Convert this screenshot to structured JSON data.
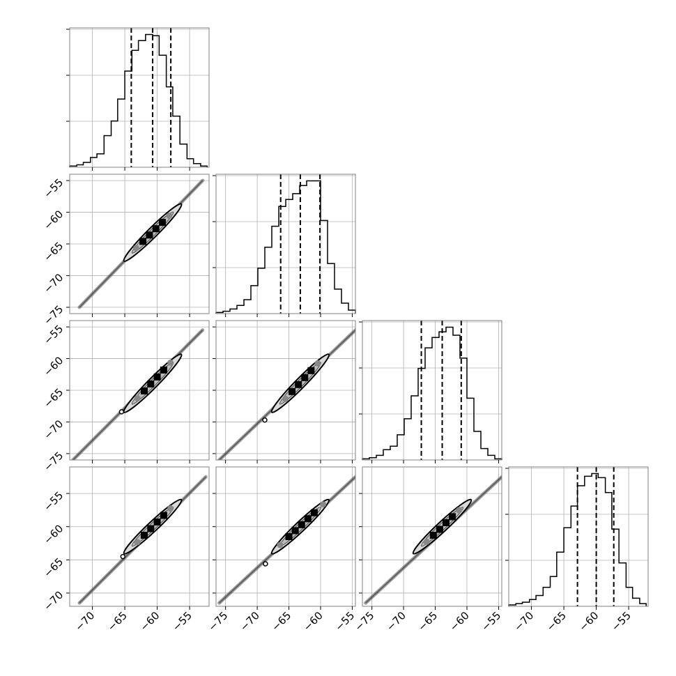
{
  "chart_data": {
    "type": "corner",
    "colors": {
      "line": "#000000",
      "grid": "#b0b0b0",
      "frame": "#808080",
      "contour_fill": "#d9d9d9",
      "scatter": "#555555"
    },
    "grid": true,
    "quantile_lines": "dashed",
    "ticks": {
      "x": [
        [
          "−70",
          "−65",
          "−60",
          "−55"
        ],
        [
          "−75",
          "−70",
          "−65",
          "−60",
          "−55"
        ],
        [
          "−75",
          "−70",
          "−65",
          "−60",
          "−55"
        ],
        [
          "−70",
          "−65",
          "−60",
          "−55"
        ]
      ],
      "y": [
        [],
        [
          "−55",
          "−60",
          "−65",
          "−70",
          "−75"
        ],
        [
          "−55",
          "−60",
          "−65",
          "−70",
          "−75"
        ],
        [
          "−55",
          "−60",
          "−65",
          "−70"
        ]
      ]
    },
    "x_ranges": [
      [
        -73.5,
        -52.0
      ],
      [
        -76.5,
        -54.5
      ],
      [
        -76.5,
        -54.5
      ],
      [
        -73.5,
        -52.0
      ]
    ],
    "y_ranges": [
      [
        null,
        null
      ],
      [
        -76.0,
        -54.0
      ],
      [
        -76.0,
        -54.0
      ],
      [
        -72.0,
        -51.0
      ]
    ],
    "histograms": [
      {
        "quantiles": [
          -64.0,
          -60.7,
          -57.9
        ],
        "edges": [
          -73.5,
          -72.4,
          -71.4,
          -70.3,
          -69.3,
          -68.2,
          -67.1,
          -66.1,
          -65.0,
          -63.9,
          -62.9,
          -61.8,
          -60.7,
          -59.7,
          -58.6,
          -57.6,
          -56.5,
          -55.4,
          -54.4,
          -53.3,
          -52.3
        ],
        "counts": [
          0.01,
          0.02,
          0.04,
          0.08,
          0.11,
          0.26,
          0.38,
          0.56,
          0.79,
          0.96,
          1.04,
          1.09,
          1.08,
          0.92,
          0.66,
          0.42,
          0.19,
          0.07,
          0.03,
          0.01
        ]
      },
      {
        "quantiles": [
          -66.3,
          -63.2,
          -60.1
        ],
        "edges": [
          -76.5,
          -75.4,
          -74.3,
          -73.2,
          -72.1,
          -71.0,
          -69.9,
          -68.8,
          -67.7,
          -66.6,
          -65.5,
          -64.4,
          -63.3,
          -62.2,
          -61.1,
          -60.0,
          -58.9,
          -57.8,
          -56.7,
          -55.6,
          -54.5
        ],
        "counts": [
          0.01,
          0.02,
          0.04,
          0.07,
          0.12,
          0.24,
          0.39,
          0.57,
          0.75,
          0.92,
          0.98,
          1.03,
          1.1,
          1.14,
          1.14,
          0.8,
          0.43,
          0.21,
          0.09,
          0.03
        ]
      },
      {
        "quantiles": [
          -67.2,
          -63.9,
          -60.9
        ],
        "edges": [
          -76.5,
          -75.4,
          -74.3,
          -73.2,
          -72.1,
          -71.0,
          -69.9,
          -68.8,
          -67.7,
          -66.6,
          -65.5,
          -64.4,
          -63.3,
          -62.2,
          -61.1,
          -60.0,
          -58.9,
          -57.8,
          -56.7,
          -55.6,
          -54.5
        ],
        "counts": [
          0.01,
          0.02,
          0.04,
          0.09,
          0.12,
          0.22,
          0.36,
          0.56,
          0.8,
          0.98,
          1.07,
          1.12,
          1.16,
          1.09,
          0.89,
          0.54,
          0.25,
          0.1,
          0.04,
          0.01
        ]
      },
      {
        "quantiles": [
          -62.9,
          -60.0,
          -57.3
        ],
        "edges": [
          -73.5,
          -72.4,
          -71.4,
          -70.3,
          -69.3,
          -68.2,
          -67.1,
          -66.1,
          -65.0,
          -63.9,
          -62.9,
          -61.8,
          -60.7,
          -59.7,
          -58.6,
          -57.6,
          -56.5,
          -55.4,
          -54.4,
          -53.3,
          -52.3
        ],
        "counts": [
          0.01,
          0.02,
          0.03,
          0.05,
          0.08,
          0.14,
          0.22,
          0.4,
          0.58,
          0.74,
          0.89,
          0.96,
          0.98,
          0.95,
          0.84,
          0.57,
          0.32,
          0.14,
          0.06,
          0.02
        ]
      }
    ],
    "contours": [
      {
        "row": 1,
        "col": 0,
        "x_span": [
          -72.0,
          -53.0
        ],
        "y_span": [
          -75.0,
          -55.0
        ],
        "ellipse": [
          [
            -60.7,
            -63.2
          ],
          [
            -57.9,
            -60.1
          ],
          [
            -64.0,
            -66.3
          ]
        ],
        "points": [
          [
            -62.2,
            -64.6
          ],
          [
            -61.2,
            -63.6
          ],
          [
            -60.2,
            -62.6
          ],
          [
            -59.2,
            -61.6
          ]
        ],
        "open_point": null
      },
      {
        "row": 2,
        "col": 0,
        "x_span": [
          -73.0,
          -53.0
        ],
        "y_span": [
          -76.0,
          -55.5
        ],
        "ellipse": [
          [
            -60.7,
            -63.9
          ],
          [
            -57.9,
            -60.9
          ],
          [
            -64.0,
            -67.2
          ]
        ],
        "points": [
          [
            -62.0,
            -65.1
          ],
          [
            -61.0,
            -64.0
          ],
          [
            -60.0,
            -62.9
          ],
          [
            -59.0,
            -61.8
          ]
        ],
        "open_point": [
          -65.5,
          -68.4
        ]
      },
      {
        "row": 2,
        "col": 1,
        "x_span": [
          -76.0,
          -54.5
        ],
        "y_span": [
          -76.0,
          -55.5
        ],
        "ellipse": [
          [
            -63.2,
            -63.9
          ],
          [
            -60.1,
            -60.9
          ],
          [
            -66.3,
            -67.2
          ]
        ],
        "points": [
          [
            -64.5,
            -65.2
          ],
          [
            -63.5,
            -64.1
          ],
          [
            -62.5,
            -63.0
          ],
          [
            -61.5,
            -61.9
          ]
        ],
        "open_point": [
          -68.8,
          -69.7
        ]
      },
      {
        "row": 3,
        "col": 0,
        "x_span": [
          -72.0,
          -52.5
        ],
        "y_span": [
          -71.5,
          -52.5
        ],
        "ellipse": [
          [
            -60.7,
            -60.0
          ],
          [
            -57.9,
            -57.3
          ],
          [
            -64.0,
            -62.9
          ]
        ],
        "points": [
          [
            -62.0,
            -61.3
          ],
          [
            -61.0,
            -60.3
          ],
          [
            -60.0,
            -59.3
          ],
          [
            -59.0,
            -58.3
          ]
        ],
        "open_point": [
          -65.3,
          -64.5
        ]
      },
      {
        "row": 3,
        "col": 1,
        "x_span": [
          -76.0,
          -54.5
        ],
        "y_span": [
          -71.5,
          -52.5
        ],
        "ellipse": [
          [
            -63.2,
            -60.0
          ],
          [
            -60.1,
            -57.3
          ],
          [
            -66.3,
            -62.9
          ]
        ],
        "points": [
          [
            -65.0,
            -61.5
          ],
          [
            -64.0,
            -60.6
          ],
          [
            -63.0,
            -59.7
          ],
          [
            -62.0,
            -58.8
          ],
          [
            -61.0,
            -57.9
          ]
        ],
        "open_point": [
          -68.7,
          -65.6
        ]
      },
      {
        "row": 3,
        "col": 2,
        "x_span": [
          -76.0,
          -54.5
        ],
        "y_span": [
          -71.5,
          -52.5
        ],
        "ellipse": [
          [
            -63.9,
            -60.0
          ],
          [
            -60.9,
            -57.3
          ],
          [
            -67.2,
            -62.9
          ]
        ],
        "points": [
          [
            -65.3,
            -61.3
          ],
          [
            -64.3,
            -60.4
          ],
          [
            -63.3,
            -59.4
          ],
          [
            -62.3,
            -58.5
          ]
        ],
        "open_point": null
      }
    ]
  }
}
